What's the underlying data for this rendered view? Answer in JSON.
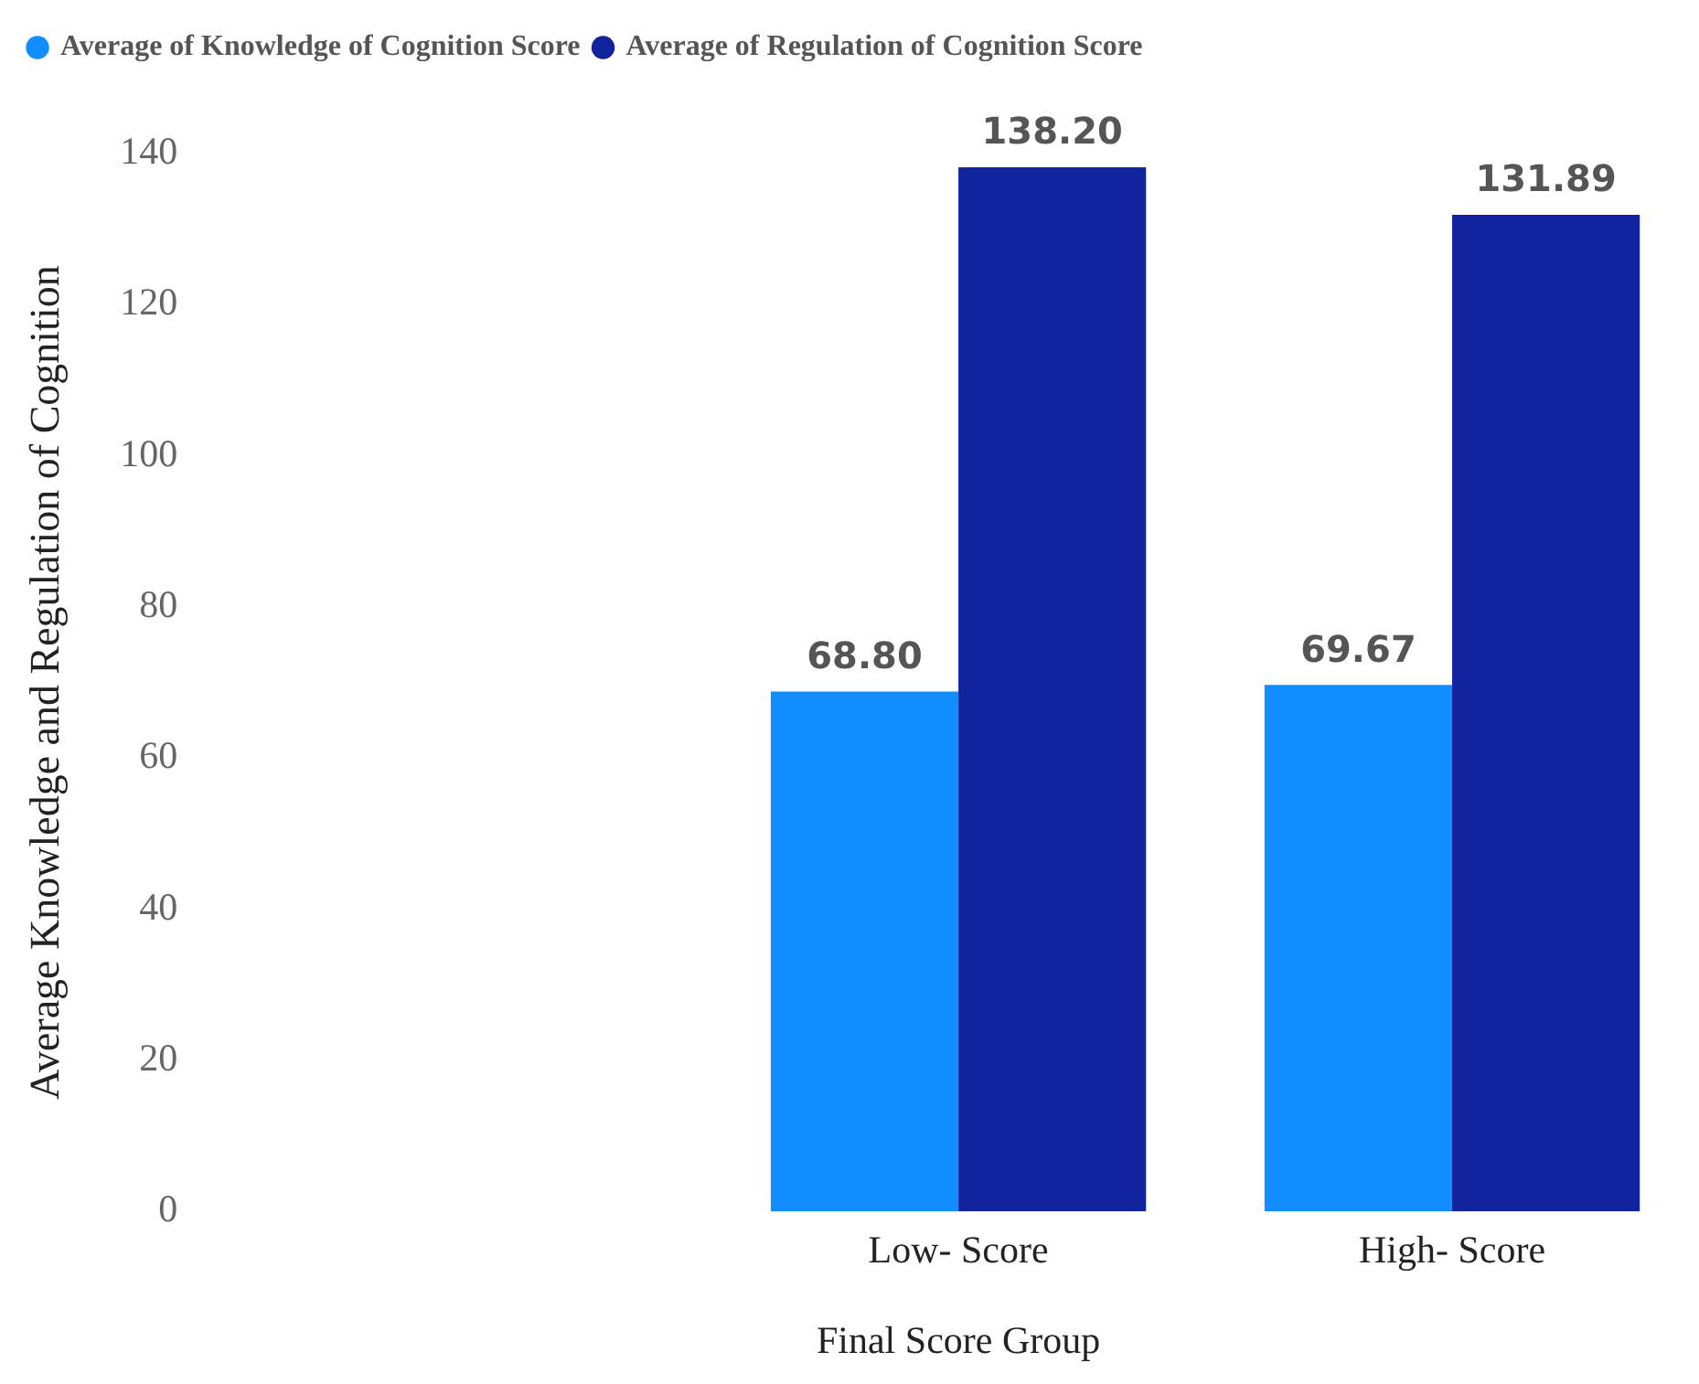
{
  "chart_data": {
    "type": "bar",
    "xlabel": "Final Score Group",
    "ylabel": "Average Knowledge and Regulation of Cognition",
    "categories": [
      null,
      "Low- Score",
      "High- Score"
    ],
    "series": [
      {
        "name": "Average of Knowledge of Cognition Score",
        "color": "#118dff",
        "values": [
          null,
          68.8,
          69.67
        ],
        "value_labels": [
          null,
          "68.80",
          "69.67"
        ]
      },
      {
        "name": "Average of Regulation of Cognition Score",
        "color": "#12239e",
        "values": [
          null,
          138.2,
          131.89
        ],
        "value_labels": [
          null,
          "138.20",
          "131.89"
        ]
      }
    ],
    "ylim": [
      0,
      140
    ],
    "yticks": [
      0,
      20,
      40,
      60,
      80,
      100,
      120,
      140
    ],
    "grid": false,
    "legend": "top left"
  }
}
